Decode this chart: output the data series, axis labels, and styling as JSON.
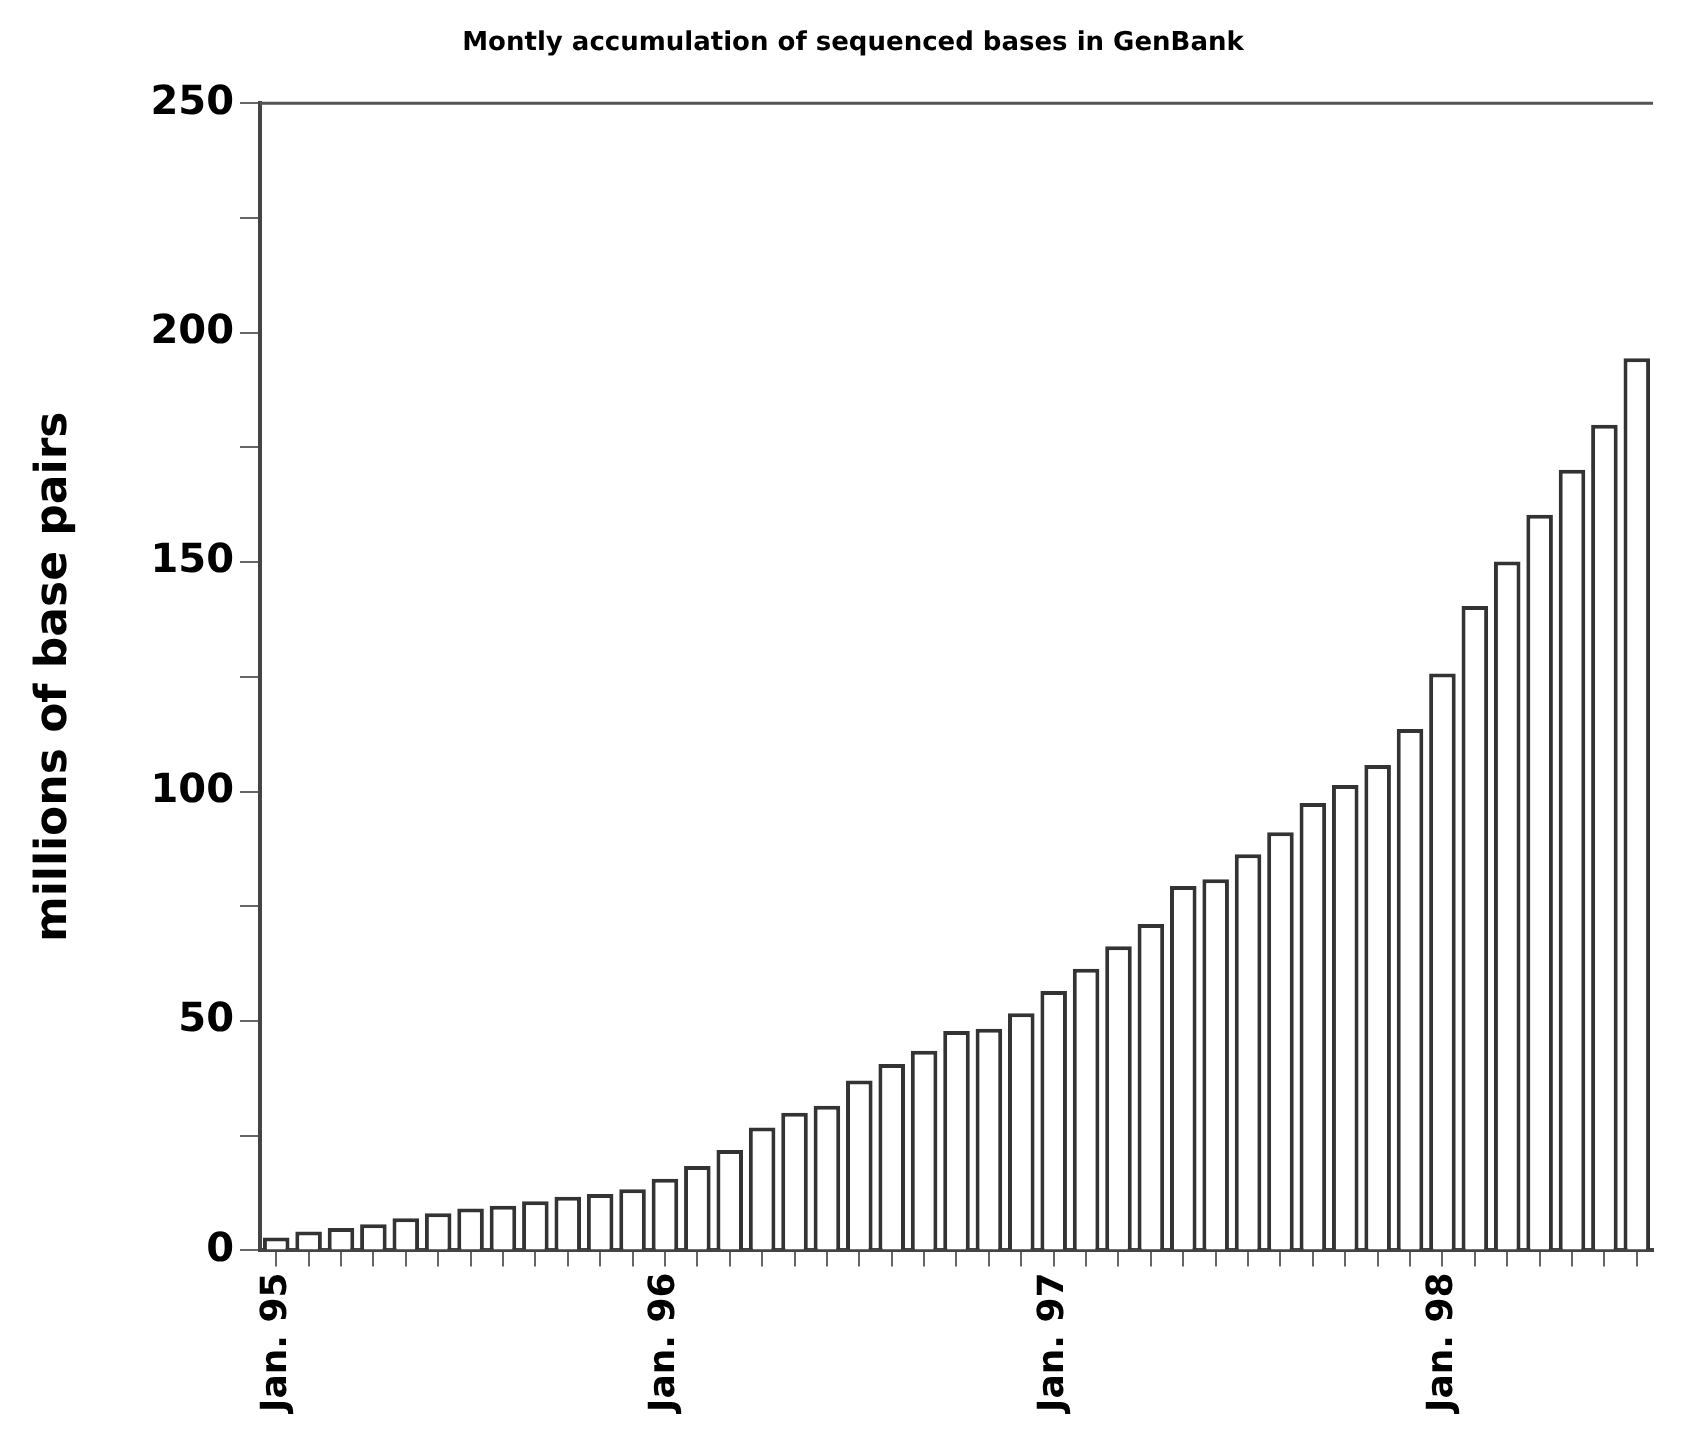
{
  "chart_data": {
    "type": "bar",
    "title": "Montly accumulation of sequenced bases in GenBank",
    "ylabel": "millions of base pairs",
    "categories": [
      "Jan. 95",
      null,
      null,
      null,
      null,
      null,
      null,
      null,
      null,
      null,
      null,
      null,
      "Jan. 96",
      null,
      null,
      null,
      null,
      null,
      null,
      null,
      null,
      null,
      null,
      null,
      "Jan. 97",
      null,
      null,
      null,
      null,
      null,
      null,
      null,
      null,
      null,
      null,
      null,
      "Jan. 98",
      null,
      null,
      null,
      null,
      null,
      null
    ],
    "values": [
      2.8,
      4.1,
      4.9,
      5.7,
      7,
      8.1,
      9.1,
      9.7,
      10.7,
      11.7,
      12.3,
      13.3,
      15.6,
      18.4,
      21.9,
      26.8,
      30,
      31.5,
      37,
      40.6,
      43.5,
      47.8,
      48.3,
      51.7,
      56.5,
      61.4,
      66.3,
      71.1,
      79.4,
      80.9,
      86.3,
      91.1,
      97.5,
      101.4,
      105.8,
      113.6,
      125.7,
      140.4,
      150.1,
      160.3,
      170.1,
      179.9,
      194.4
    ],
    "color": "#ffffff",
    "ylim": [
      0,
      250
    ],
    "yticks": [
      0,
      {
        "value": 25,
        "label": null
      },
      50,
      {
        "value": 75,
        "label": null
      },
      100,
      {
        "value": 125,
        "label": null
      },
      150,
      {
        "value": 175,
        "label": null
      },
      200,
      {
        "value": 225,
        "label": null
      },
      250
    ],
    "grid": false,
    "legend": false
  }
}
